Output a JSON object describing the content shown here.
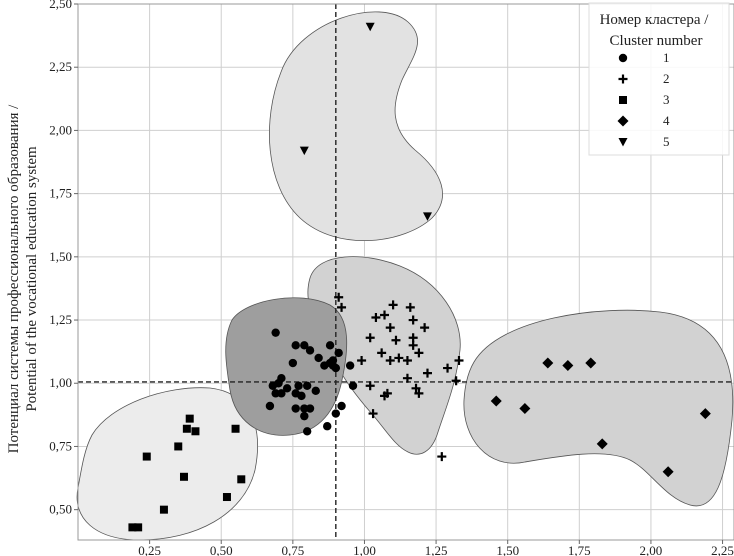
{
  "chart_data": {
    "type": "scatter",
    "title": "",
    "ylabel_lines": [
      "Потенциал системы профессионального образования /",
      "Potential of the vocational education system"
    ],
    "xlabel": "",
    "xlim": [
      0.0,
      2.29
    ],
    "ylim": [
      0.38,
      2.5
    ],
    "x_ticks": [
      0.25,
      0.5,
      0.75,
      1.0,
      1.25,
      1.5,
      1.75,
      2.0,
      2.25
    ],
    "x_tick_labels": [
      "0,25",
      "0,50",
      "0,75",
      "1,00",
      "1,25",
      "1,50",
      "1,75",
      "2,00",
      "2,25"
    ],
    "y_ticks": [
      0.5,
      0.75,
      1.0,
      1.25,
      1.5,
      1.75,
      2.0,
      2.25,
      2.5
    ],
    "y_tick_labels": [
      "0,50",
      "0,75",
      "1,00",
      "1,25",
      "1,50",
      "1,75",
      "2,00",
      "2,25",
      "2,50"
    ],
    "grid": true,
    "reference_lines": {
      "x": 0.9,
      "y": 1.005
    },
    "legend": {
      "title_lines": [
        "Номер кластера /",
        "Cluster number"
      ],
      "position": "top-right",
      "items": [
        {
          "label": "1",
          "marker": "circle"
        },
        {
          "label": "2",
          "marker": "plus"
        },
        {
          "label": "3",
          "marker": "square"
        },
        {
          "label": "4",
          "marker": "diamond"
        },
        {
          "label": "5",
          "marker": "triangle-down"
        }
      ]
    },
    "series": [
      {
        "name": "1",
        "marker": "circle",
        "hull_fill": "#9e9e9e",
        "points": [
          [
            0.69,
            1.2
          ],
          [
            0.76,
            1.15
          ],
          [
            0.79,
            1.15
          ],
          [
            0.81,
            1.13
          ],
          [
            0.88,
            1.15
          ],
          [
            0.91,
            1.12
          ],
          [
            0.84,
            1.1
          ],
          [
            0.86,
            1.07
          ],
          [
            0.88,
            1.08
          ],
          [
            0.89,
            1.09
          ],
          [
            0.89,
            1.07
          ],
          [
            0.9,
            1.06
          ],
          [
            0.95,
            1.07
          ],
          [
            0.75,
            1.08
          ],
          [
            0.71,
            1.02
          ],
          [
            0.7,
            1.0
          ],
          [
            0.68,
            0.99
          ],
          [
            0.73,
            0.98
          ],
          [
            0.77,
            0.99
          ],
          [
            0.8,
            0.99
          ],
          [
            0.83,
            0.97
          ],
          [
            0.69,
            0.96
          ],
          [
            0.71,
            0.96
          ],
          [
            0.76,
            0.96
          ],
          [
            0.78,
            0.95
          ],
          [
            0.67,
            0.91
          ],
          [
            0.76,
            0.9
          ],
          [
            0.79,
            0.9
          ],
          [
            0.81,
            0.9
          ],
          [
            0.79,
            0.87
          ],
          [
            0.9,
            0.88
          ],
          [
            0.87,
            0.83
          ],
          [
            0.8,
            0.81
          ],
          [
            0.92,
            0.91
          ],
          [
            0.96,
            0.99
          ]
        ]
      },
      {
        "name": "2",
        "marker": "plus",
        "hull_fill": "#d2d2d2",
        "points": [
          [
            0.91,
            1.34
          ],
          [
            0.92,
            1.3
          ],
          [
            1.04,
            1.26
          ],
          [
            1.07,
            1.27
          ],
          [
            1.1,
            1.31
          ],
          [
            1.16,
            1.3
          ],
          [
            1.17,
            1.25
          ],
          [
            1.21,
            1.22
          ],
          [
            1.09,
            1.22
          ],
          [
            1.02,
            1.18
          ],
          [
            1.11,
            1.17
          ],
          [
            1.17,
            1.18
          ],
          [
            1.17,
            1.15
          ],
          [
            1.06,
            1.12
          ],
          [
            1.12,
            1.1
          ],
          [
            1.15,
            1.09
          ],
          [
            1.19,
            1.12
          ],
          [
            1.22,
            1.04
          ],
          [
            1.29,
            1.06
          ],
          [
            1.33,
            1.09
          ],
          [
            1.09,
            1.09
          ],
          [
            1.08,
            0.96
          ],
          [
            1.07,
            0.95
          ],
          [
            1.18,
            0.98
          ],
          [
            1.19,
            0.96
          ],
          [
            1.03,
            0.88
          ],
          [
            1.32,
            1.01
          ],
          [
            1.27,
            0.71
          ],
          [
            0.99,
            1.09
          ],
          [
            1.02,
            0.99
          ],
          [
            1.15,
            1.02
          ]
        ]
      },
      {
        "name": "3",
        "marker": "square",
        "hull_fill": "#ececec",
        "points": [
          [
            0.39,
            0.86
          ],
          [
            0.38,
            0.82
          ],
          [
            0.41,
            0.81
          ],
          [
            0.55,
            0.82
          ],
          [
            0.35,
            0.75
          ],
          [
            0.24,
            0.71
          ],
          [
            0.37,
            0.63
          ],
          [
            0.57,
            0.62
          ],
          [
            0.52,
            0.55
          ],
          [
            0.3,
            0.5
          ],
          [
            0.19,
            0.43
          ],
          [
            0.21,
            0.43
          ]
        ]
      },
      {
        "name": "4",
        "marker": "diamond",
        "hull_fill": "#d2d2d2",
        "points": [
          [
            1.64,
            1.08
          ],
          [
            1.71,
            1.07
          ],
          [
            1.79,
            1.08
          ],
          [
            1.46,
            0.93
          ],
          [
            1.56,
            0.9
          ],
          [
            2.19,
            0.88
          ],
          [
            1.83,
            0.76
          ],
          [
            2.06,
            0.65
          ]
        ]
      },
      {
        "name": "5",
        "marker": "triangle-down",
        "hull_fill": "#e2e2e2",
        "points": [
          [
            1.02,
            2.41
          ],
          [
            0.79,
            1.92
          ],
          [
            1.22,
            1.66
          ]
        ]
      }
    ]
  }
}
